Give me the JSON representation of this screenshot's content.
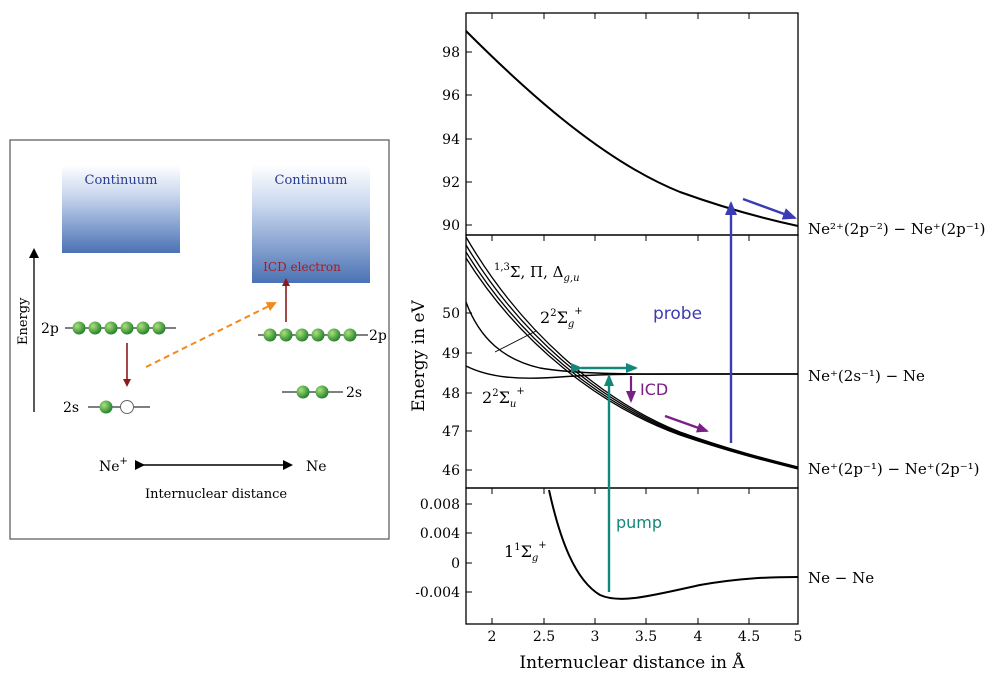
{
  "left_panel": {
    "continuum_left": "Continuum",
    "continuum_right": "Continuum",
    "icd_electron": "ICD electron",
    "energy_label": "Energy",
    "level_2p_left": "2p",
    "level_2p_right": "2p",
    "level_2s_left": "2s",
    "level_2s_right": "2s",
    "ne_plus": "Ne",
    "ne_plus_sup": "+",
    "ne": "Ne",
    "internuclear": "Internuclear distance"
  },
  "right_panel": {
    "y_axis_label": "Energy in eV",
    "x_axis_label": "Internuclear distance in Å",
    "x_ticks": [
      "2",
      "2.5",
      "3",
      "3.5",
      "4",
      "4.5",
      "5"
    ],
    "top_ticks": [
      "98",
      "96",
      "94",
      "92",
      "90"
    ],
    "mid_ticks": [
      "50",
      "49",
      "48",
      "47",
      "46"
    ],
    "bot_ticks": [
      "0.008",
      "0.004",
      "0",
      "-0.004"
    ],
    "probe_label": "probe",
    "icd_label": "ICD",
    "pump_label": "pump",
    "state_1_main": "1,3",
    "state_1_rest": "Σ, Π, Δ",
    "state_1_sub": "g,u",
    "state_2_main": "2",
    "state_2_sup2": "2",
    "state_2_sig": "Σ",
    "state_2_sub": "g",
    "state_2_sup": "+",
    "state_3_main": "2",
    "state_3_sup2": "2",
    "state_3_sig": "Σ",
    "state_3_sub": "u",
    "state_3_sup": "+",
    "state_4_main": "1",
    "state_4_sup1": "1",
    "state_4_sig": "Σ",
    "state_4_sub": "g",
    "state_4_sup": "+",
    "right_label_top": "Ne²⁺(2p⁻²) − Ne⁺(2p⁻¹)",
    "right_label_mid1": "Ne⁺(2s⁻¹) − Ne",
    "right_label_mid2": "Ne⁺(2p⁻¹) − Ne⁺(2p⁻¹)",
    "right_label_bot": "Ne − Ne"
  },
  "colors": {
    "continuum_top": "#ffffff",
    "continuum_bottom": "#4a72b4",
    "electron_green": "#2e9e3a",
    "dark_red": "#8b1a1a",
    "orange": "#f08a1c",
    "probe_blue": "#3b3bb5",
    "icd_purple": "#7a1f86",
    "pump_teal": "#12877a"
  }
}
